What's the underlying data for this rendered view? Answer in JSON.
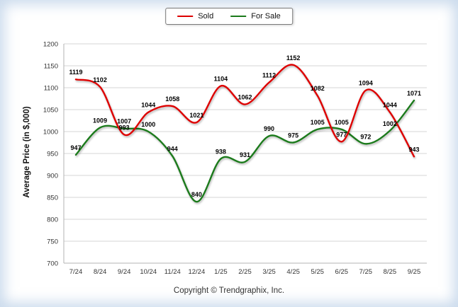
{
  "legend": {
    "items": [
      {
        "label": "Sold",
        "color": "#dd0000"
      },
      {
        "label": "For Sale",
        "color": "#1a7a1a"
      }
    ]
  },
  "footer": {
    "copyright": "Copyright © Trendgraphix, Inc."
  },
  "chart_data": {
    "type": "line",
    "title": "",
    "ylabel": "Average Price (in $,000)",
    "xlabel": "",
    "ylim": [
      700,
      1200
    ],
    "ytick_step": 50,
    "grid": true,
    "legend_position": "top",
    "line_style": "smooth",
    "categories": [
      "7/24",
      "8/24",
      "9/24",
      "10/24",
      "11/24",
      "12/24",
      "1/25",
      "2/25",
      "3/25",
      "4/25",
      "5/25",
      "6/25",
      "7/25",
      "8/25",
      "9/25"
    ],
    "series": [
      {
        "name": "Sold",
        "color": "#dd0000",
        "values": [
          1119,
          1102,
          993,
          1044,
          1058,
          1021,
          1104,
          1062,
          1112,
          1152,
          1082,
          977,
          1094,
          1044,
          943
        ]
      },
      {
        "name": "For Sale",
        "color": "#1a7a1a",
        "values": [
          947,
          1009,
          1007,
          1000,
          944,
          840,
          938,
          931,
          990,
          975,
          1005,
          1005,
          972,
          1002,
          1071
        ]
      }
    ]
  }
}
